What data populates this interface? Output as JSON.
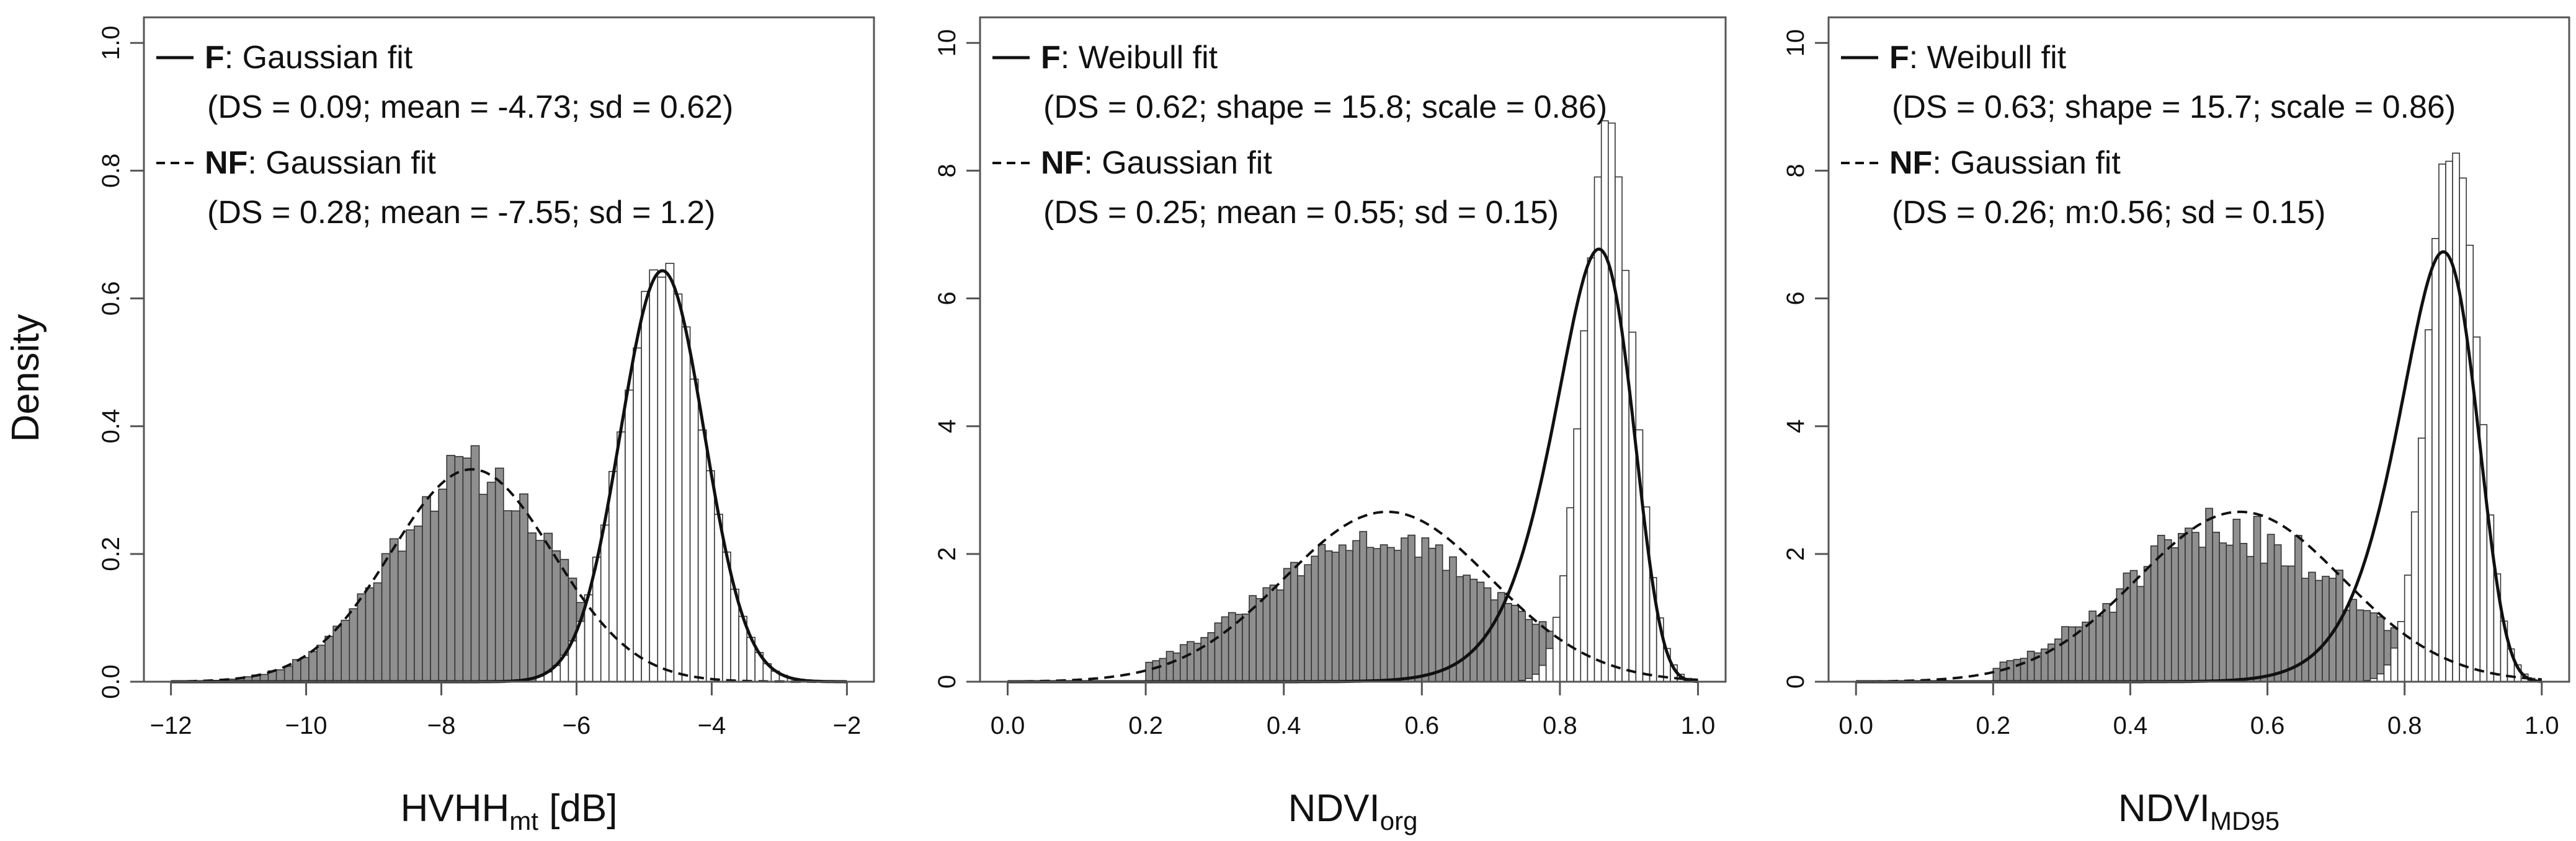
{
  "figure": {
    "ylabel": "Density",
    "colors": {
      "nf_bar": "#8f8f8f",
      "f_bar": "#ffffff",
      "edge": "#333333",
      "curve": "#111111"
    }
  },
  "chart_data": [
    {
      "type": "histogram",
      "xlabel_main": "HVHH",
      "xlabel_sub": "mt",
      "xlabel_suffix": " [dB]",
      "xlim": [
        -12.4,
        -1.6
      ],
      "ylim": [
        0,
        1.04
      ],
      "xticks": [
        -12,
        -10,
        -8,
        -6,
        -4,
        -2
      ],
      "xtick_labels": [
        "−12",
        "−10",
        "−8",
        "−6",
        "−4",
        "−2"
      ],
      "yticks": [
        0.0,
        0.2,
        0.4,
        0.6,
        0.8,
        1.0
      ],
      "ytick_labels": [
        "0.0",
        "0.2",
        "0.4",
        "0.6",
        "0.8",
        "1.0"
      ],
      "legend": [
        {
          "class": "F",
          "label": ": Gaussian fit",
          "stats": "(DS = 0.09; mean = -4.73; sd = 0.62)",
          "line": "solid"
        },
        {
          "class": "NF",
          "label": ": Gaussian fit",
          "stats": "(DS = 0.28; mean = -7.55; sd = 1.2)",
          "line": "dashed"
        }
      ],
      "series": [
        {
          "name": "NF",
          "kind": "hist",
          "dist": "gaussian",
          "mean": -7.55,
          "sd": 1.2,
          "amp": 1.0,
          "bin_start": -11.4,
          "bin_end": -5.3,
          "bin_width": 0.12,
          "seed": 11,
          "noise": 0.12
        },
        {
          "name": "F",
          "kind": "hist",
          "dist": "gaussian",
          "mean": -4.73,
          "sd": 0.62,
          "amp": 1.0,
          "bin_start": -6.6,
          "bin_end": -2.9,
          "bin_width": 0.12,
          "seed": 21,
          "noise": 0.04
        },
        {
          "name": "F",
          "kind": "curve",
          "dist": "gaussian",
          "mean": -4.73,
          "sd": 0.62,
          "amp": 1.0,
          "from": -12,
          "to": -2,
          "line": "solid"
        },
        {
          "name": "NF",
          "kind": "curve",
          "dist": "gaussian",
          "mean": -7.55,
          "sd": 1.2,
          "amp": 1.0,
          "from": -12,
          "to": -2,
          "line": "dashed"
        }
      ]
    },
    {
      "type": "histogram",
      "xlabel_main": "NDVI",
      "xlabel_sub": "org",
      "xlabel_suffix": "",
      "xlim": [
        -0.04,
        1.04
      ],
      "ylim": [
        0,
        10.4
      ],
      "xticks": [
        0.0,
        0.2,
        0.4,
        0.6,
        0.8,
        1.0
      ],
      "xtick_labels": [
        "0.0",
        "0.2",
        "0.4",
        "0.6",
        "0.8",
        "1.0"
      ],
      "yticks": [
        0,
        2,
        4,
        6,
        8,
        10
      ],
      "ytick_labels": [
        "0",
        "2",
        "4",
        "6",
        "8",
        "10"
      ],
      "legend": [
        {
          "class": "F",
          "label": ": Weibull fit",
          "stats": "(DS = 0.62; shape = 15.8; scale = 0.86)",
          "line": "solid"
        },
        {
          "class": "NF",
          "label": ": Gaussian fit",
          "stats": "(DS = 0.25; mean = 0.55; sd = 0.15)",
          "line": "dashed"
        }
      ],
      "series": [
        {
          "name": "NF",
          "kind": "hist",
          "dist": "gaussian",
          "mean": 0.54,
          "sd": 0.17,
          "amp": 0.95,
          "bin_start": 0.2,
          "bin_end": 0.96,
          "bin_width": 0.01,
          "seed": 31,
          "noise": 0.1
        },
        {
          "name": "F",
          "kind": "hist",
          "dist": "gaussian",
          "mean": 0.87,
          "sd": 0.036,
          "amp": 0.77,
          "bin_start": 0.7,
          "bin_end": 0.99,
          "bin_width": 0.01,
          "seed": 41,
          "noise": 0.04
        },
        {
          "name": "F",
          "kind": "curve",
          "dist": "weibull",
          "shape": 15.8,
          "scale": 0.86,
          "amp": 1.0,
          "from": 0.0,
          "to": 1.0,
          "line": "solid"
        },
        {
          "name": "NF",
          "kind": "curve",
          "dist": "gaussian",
          "mean": 0.55,
          "sd": 0.15,
          "amp": 1.0,
          "from": 0.0,
          "to": 1.0,
          "line": "dashed"
        }
      ]
    },
    {
      "type": "histogram",
      "xlabel_main": "NDVI",
      "xlabel_sub": "MD95",
      "xlabel_suffix": "",
      "xlim": [
        -0.04,
        1.04
      ],
      "ylim": [
        0,
        10.4
      ],
      "xticks": [
        0.0,
        0.2,
        0.4,
        0.6,
        0.8,
        1.0
      ],
      "xtick_labels": [
        "0.0",
        "0.2",
        "0.4",
        "0.6",
        "0.8",
        "1.0"
      ],
      "yticks": [
        0,
        2,
        4,
        6,
        8,
        10
      ],
      "ytick_labels": [
        "0",
        "2",
        "4",
        "6",
        "8",
        "10"
      ],
      "legend": [
        {
          "class": "F",
          "label": ": Weibull fit",
          "stats": "(DS = 0.63; shape = 15.7; scale = 0.86)",
          "line": "solid"
        },
        {
          "class": "NF",
          "label": ": Gaussian fit",
          "stats": "(DS = 0.26; m:0.56; sd = 0.15)",
          "line": "dashed"
        }
      ],
      "series": [
        {
          "name": "NF",
          "kind": "hist",
          "dist": "gaussian",
          "mean": 0.55,
          "sd": 0.16,
          "amp": 0.95,
          "bin_start": 0.2,
          "bin_end": 0.95,
          "bin_width": 0.01,
          "seed": 51,
          "noise": 0.2
        },
        {
          "name": "F",
          "kind": "hist",
          "dist": "gaussian",
          "mean": 0.87,
          "sd": 0.036,
          "amp": 0.77,
          "bin_start": 0.7,
          "bin_end": 0.99,
          "bin_width": 0.01,
          "seed": 61,
          "noise": 0.04
        },
        {
          "name": "F",
          "kind": "curve",
          "dist": "weibull",
          "shape": 15.7,
          "scale": 0.86,
          "amp": 1.0,
          "from": 0.0,
          "to": 1.0,
          "line": "solid"
        },
        {
          "name": "NF",
          "kind": "curve",
          "dist": "gaussian",
          "mean": 0.56,
          "sd": 0.15,
          "amp": 1.0,
          "from": 0.0,
          "to": 1.0,
          "line": "dashed"
        }
      ]
    }
  ]
}
